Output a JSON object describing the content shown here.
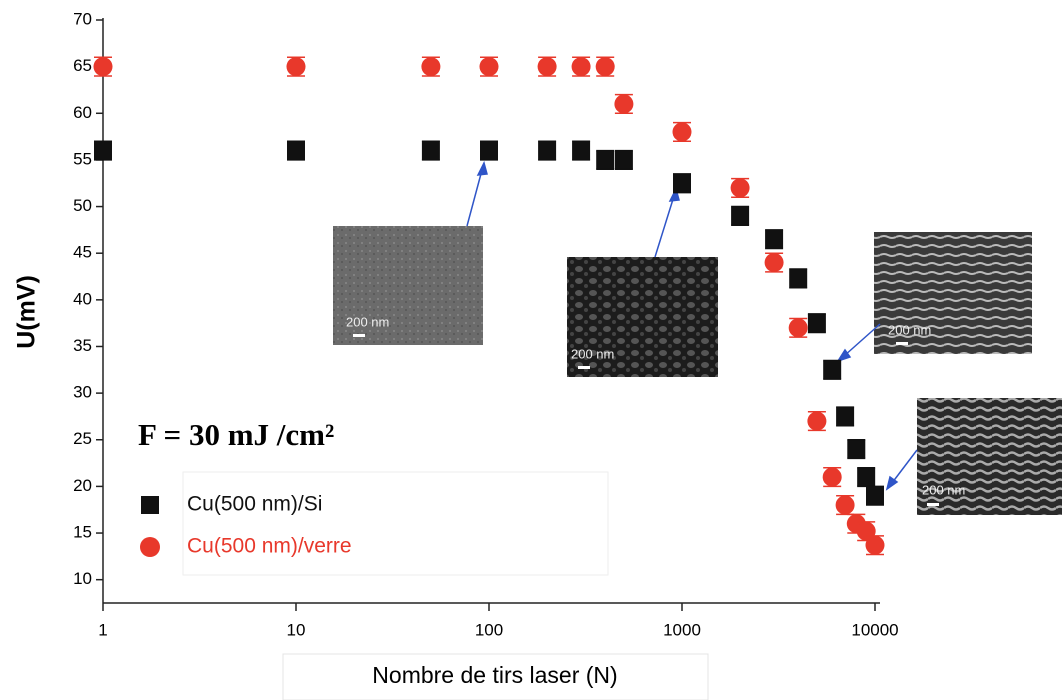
{
  "chart_data": {
    "type": "scatter",
    "xlabel": "Nombre de tirs laser (N)",
    "ylabel": "U(mV)",
    "xlog": true,
    "xlim": [
      1,
      10000
    ],
    "xticks": [
      1,
      10,
      100,
      1000,
      10000
    ],
    "ylim": [
      7.5,
      70
    ],
    "yticks": [
      10,
      15,
      20,
      25,
      30,
      35,
      40,
      45,
      50,
      55,
      60,
      65,
      70
    ],
    "annotations": [
      "F = 30 mJ /cm²",
      "200 nm",
      "200 nm",
      "200 nm",
      "200 nm"
    ],
    "series": [
      {
        "name": "Cu(500 nm)/Si",
        "color": "#111111",
        "marker": "square",
        "x": [
          1,
          10,
          50,
          100,
          200,
          300,
          400,
          500,
          1000,
          2000,
          3000,
          4000,
          5000,
          6000,
          7000,
          8000,
          9000,
          10000
        ],
        "values": [
          56,
          56,
          56,
          56,
          56,
          56,
          55,
          55,
          52.5,
          49,
          46.5,
          42.3,
          37.5,
          32.5,
          27.5,
          24,
          21,
          19
        ],
        "errors": [
          1,
          1,
          1,
          1,
          1,
          1,
          1,
          1,
          1,
          1,
          1,
          1,
          1,
          1,
          1,
          1,
          1,
          1
        ]
      },
      {
        "name": "Cu(500 nm)/verre",
        "color": "#e8382b",
        "marker": "circle",
        "x": [
          1,
          10,
          50,
          100,
          200,
          300,
          400,
          500,
          1000,
          2000,
          3000,
          4000,
          5000,
          6000,
          7000,
          8000,
          9000,
          10000
        ],
        "values": [
          65,
          65,
          65,
          65,
          65,
          65,
          65,
          61,
          58,
          52,
          44,
          37,
          27,
          21,
          18,
          16,
          15.2,
          13.7
        ],
        "errors": [
          1,
          1,
          1,
          1,
          1,
          1,
          1,
          1,
          1,
          1,
          1,
          1,
          1,
          1,
          1,
          1,
          1,
          1
        ]
      }
    ]
  }
}
